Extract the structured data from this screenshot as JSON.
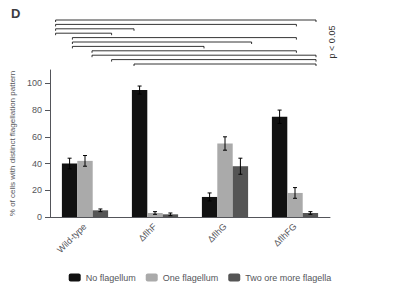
{
  "chart_data": {
    "type": "bar",
    "title": "D",
    "categories": [
      "Wild-type",
      "ΔflhF",
      "ΔflhG",
      "ΔflhFG"
    ],
    "series": [
      {
        "name": "No flagellum",
        "color": "#111111",
        "values": [
          40,
          95,
          15,
          75
        ],
        "errors": [
          4,
          3,
          3,
          5
        ]
      },
      {
        "name": "One flagellum",
        "color": "#aaaaaa",
        "values": [
          42,
          3,
          55,
          18
        ],
        "errors": [
          4,
          1,
          5,
          4
        ]
      },
      {
        "name": "Two ore more flagella",
        "color": "#555555",
        "values": [
          5,
          2,
          38,
          3
        ],
        "errors": [
          1,
          1,
          6,
          1
        ]
      }
    ],
    "ylabel": "% of cells with distinct flagellation pattern",
    "ylim": [
      0,
      110
    ],
    "yticks": [
      0,
      20,
      40,
      60,
      80,
      100
    ],
    "annotations": [
      "p < 0.05"
    ],
    "grid": false,
    "legend": "bottom"
  }
}
